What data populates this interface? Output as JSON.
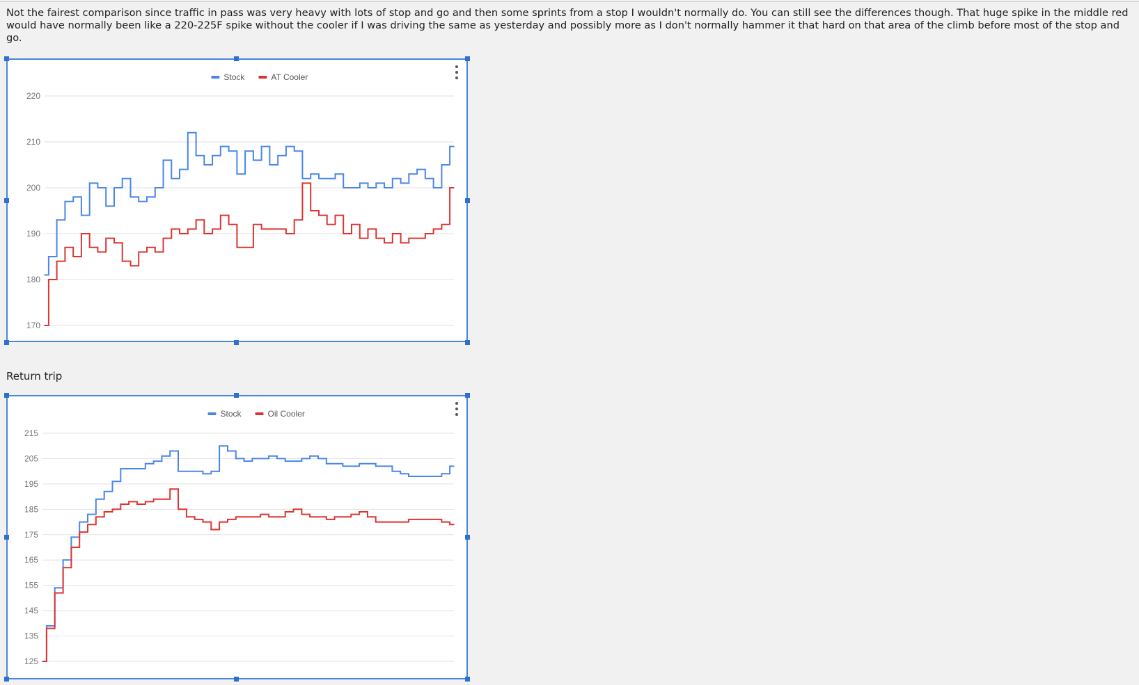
{
  "post": {
    "text": "Not the fairest comparison since traffic in pass was very heavy with lots of stop and go and then some sprints from a stop I wouldn't normally do. You can still see the differences though. That huge spike in the middle red would have normally been like a 220-225F spike without the cooler if I was driving the same as yesterday and possibly more as I don't normally hammer it that hard on that area of the climb before most of the stop and go.",
    "return_label": "Return trip"
  },
  "colors": {
    "stock": "#4a86e8",
    "cooler": "#dc3431",
    "grid": "#e2e2e2",
    "tick_text": "#757575",
    "selection_border": "#4a86d9"
  },
  "icons": {
    "chart_menu": "vertical-ellipsis-icon",
    "resize_handle": "square-handle-icon"
  },
  "chart_data": [
    {
      "type": "line",
      "title": "",
      "xlabel": "",
      "ylabel": "",
      "ylim": [
        170,
        220
      ],
      "yticks": [
        220,
        210,
        200,
        190,
        180,
        170
      ],
      "grid": true,
      "legend_position": "top-center",
      "x": [
        0,
        2,
        4,
        6,
        8,
        10,
        12,
        14,
        16,
        18,
        20,
        22,
        24,
        26,
        28,
        30,
        32,
        34,
        36,
        38,
        40,
        42,
        44,
        46,
        48,
        50,
        52,
        54,
        56,
        58,
        60,
        62,
        64,
        66,
        68,
        70,
        72,
        74,
        76,
        78,
        80,
        82,
        84,
        86,
        88,
        90,
        92,
        94,
        96,
        98,
        100
      ],
      "series": [
        {
          "name": "Stock",
          "color": "#4a86e8",
          "values": [
            181,
            185,
            193,
            197,
            198,
            194,
            201,
            200,
            196,
            200,
            202,
            198,
            197,
            198,
            200,
            206,
            202,
            204,
            212,
            207,
            205,
            207,
            209,
            208,
            203,
            208,
            206,
            209,
            205,
            207,
            209,
            208,
            202,
            203,
            202,
            202,
            203,
            200,
            200,
            201,
            200,
            201,
            200,
            202,
            201,
            203,
            204,
            202,
            200,
            205,
            209
          ]
        },
        {
          "name": "AT Cooler",
          "color": "#dc3431",
          "values": [
            170,
            180,
            184,
            187,
            185,
            190,
            187,
            186,
            189,
            188,
            184,
            183,
            186,
            187,
            186,
            189,
            191,
            190,
            191,
            193,
            190,
            191,
            194,
            192,
            187,
            187,
            192,
            191,
            191,
            191,
            190,
            193,
            201,
            195,
            194,
            192,
            194,
            190,
            192,
            189,
            191,
            189,
            188,
            190,
            188,
            189,
            189,
            190,
            191,
            192,
            200
          ]
        }
      ]
    },
    {
      "type": "line",
      "title": "",
      "xlabel": "",
      "ylabel": "",
      "ylim": [
        125,
        215
      ],
      "yticks": [
        215,
        205,
        195,
        185,
        175,
        165,
        155,
        145,
        135,
        125
      ],
      "grid": true,
      "legend_position": "top-center",
      "x": [
        0,
        2,
        4,
        6,
        8,
        10,
        12,
        14,
        16,
        18,
        20,
        22,
        24,
        26,
        28,
        30,
        32,
        34,
        36,
        38,
        40,
        42,
        44,
        46,
        48,
        50,
        52,
        54,
        56,
        58,
        60,
        62,
        64,
        66,
        68,
        70,
        72,
        74,
        76,
        78,
        80,
        82,
        84,
        86,
        88,
        90,
        92,
        94,
        96,
        98,
        100
      ],
      "series": [
        {
          "name": "Stock",
          "color": "#4a86e8",
          "values": [
            125,
            139,
            154,
            165,
            174,
            180,
            183,
            189,
            192,
            196,
            201,
            201,
            201,
            203,
            204,
            206,
            208,
            200,
            200,
            200,
            199,
            200,
            210,
            208,
            205,
            204,
            205,
            205,
            206,
            205,
            204,
            204,
            205,
            206,
            205,
            203,
            203,
            202,
            202,
            203,
            203,
            202,
            202,
            200,
            199,
            198,
            198,
            198,
            198,
            199,
            202
          ]
        },
        {
          "name": "Oil Cooler",
          "color": "#dc3431",
          "values": [
            125,
            138,
            152,
            162,
            170,
            176,
            179,
            182,
            184,
            185,
            187,
            188,
            187,
            188,
            189,
            189,
            193,
            185,
            182,
            181,
            180,
            177,
            180,
            181,
            182,
            182,
            182,
            183,
            182,
            182,
            184,
            185,
            183,
            182,
            182,
            181,
            182,
            182,
            183,
            184,
            182,
            180,
            180,
            180,
            180,
            181,
            181,
            181,
            181,
            180,
            179
          ]
        }
      ]
    }
  ]
}
